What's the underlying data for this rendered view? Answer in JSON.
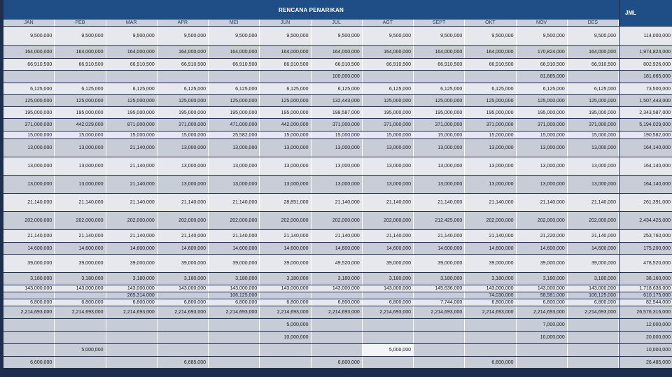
{
  "header": {
    "title": "RENCANA PENARIKAN",
    "total_label": "JML"
  },
  "months": [
    "JAN",
    "PEB",
    "MAR",
    "APR",
    "MEI",
    "JUN",
    "JUL",
    "AGT",
    "SEPT",
    "OKT",
    "NOV",
    "DES"
  ],
  "rows": [
    {
      "h": 28,
      "s": "l",
      "v": [
        "9,500,000",
        "9,500,000",
        "9,500,000",
        "9,500,000",
        "9,500,000",
        "9,500,000",
        "9,500,000",
        "9,500,000",
        "9,500,000",
        "9,500,000",
        "9,500,000",
        "9,500,000"
      ],
      "t": "114,000,000"
    },
    {
      "h": 18,
      "s": "d",
      "v": [
        "164,000,000",
        "164,000,000",
        "164,000,000",
        "164,000,000",
        "164,000,000",
        "164,000,000",
        "164,000,000",
        "164,000,000",
        "164,000,000",
        "164,000,000",
        "170,824,000",
        "164,000,000"
      ],
      "t": "1,974,824,000"
    },
    {
      "h": 17,
      "s": "l",
      "v": [
        "66,910,500",
        "66,910,500",
        "66,910,500",
        "66,910,500",
        "66,910,500",
        "66,910,500",
        "66,910,500",
        "66,910,500",
        "66,910,500",
        "66,910,500",
        "66,910,500",
        "66,910,500"
      ],
      "t": "802,926,000"
    },
    {
      "h": 18,
      "s": "d",
      "v": [
        "",
        "",
        "",
        "",
        "",
        "",
        "100,000,000",
        "",
        "",
        "",
        "81,665,000",
        ""
      ],
      "t": "181,665,000"
    },
    {
      "h": 17,
      "s": "l",
      "v": [
        "6,125,000",
        "6,125,000",
        "6,125,000",
        "6,125,000",
        "6,125,000",
        "6,125,000",
        "6,125,000",
        "6,125,000",
        "6,125,000",
        "6,125,000",
        "6,125,000",
        "6,125,000"
      ],
      "t": "73,500,000"
    },
    {
      "h": 17,
      "s": "d",
      "v": [
        "125,000,000",
        "125,000,000",
        "125,000,000",
        "125,000,000",
        "125,000,000",
        "125,000,000",
        "132,443,000",
        "125,000,000",
        "125,000,000",
        "125,000,000",
        "125,000,000",
        "125,000,000"
      ],
      "t": "1,507,443,000"
    },
    {
      "h": 17,
      "s": "l",
      "v": [
        "195,000,000",
        "195,000,000",
        "195,000,000",
        "195,000,000",
        "195,000,000",
        "195,000,000",
        "198,587,000",
        "195,000,000",
        "195,000,000",
        "195,000,000",
        "195,000,000",
        "195,000,000"
      ],
      "t": "2,343,587,000"
    },
    {
      "h": 18,
      "s": "d",
      "v": [
        "371,000,000",
        "442,029,000",
        "871,000,000",
        "371,000,000",
        "471,000,000",
        "442,000,000",
        "371,000,000",
        "371,000,000",
        "371,000,000",
        "371,000,000",
        "371,000,000",
        "371,000,000"
      ],
      "t": "5,194,029,000"
    },
    {
      "h": 11,
      "s": "l",
      "v": [
        "15,000,000",
        "15,000,000",
        "15,000,000",
        "15,000,000",
        "25,582,000",
        "15,000,000",
        "15,000,000",
        "15,000,000",
        "15,000,000",
        "15,000,000",
        "15,000,000",
        "15,000,000"
      ],
      "t": "190,582,000"
    },
    {
      "h": 26,
      "s": "d",
      "v": [
        "13,000,000",
        "13,000,000",
        "21,140,000",
        "13,000,000",
        "13,000,000",
        "13,000,000",
        "13,000,000",
        "13,000,000",
        "13,000,000",
        "13,000,000",
        "13,000,000",
        "13,000,000"
      ],
      "t": "164,140,000"
    },
    {
      "h": 26,
      "s": "l",
      "v": [
        "13,000,000",
        "13,000,000",
        "21,140,000",
        "13,000,000",
        "13,000,000",
        "13,000,000",
        "13,000,000",
        "13,000,000",
        "13,000,000",
        "13,000,000",
        "13,000,000",
        "13,000,000"
      ],
      "t": "164,140,000"
    },
    {
      "h": 26,
      "s": "d",
      "v": [
        "13,000,000",
        "13,000,000",
        "21,140,000",
        "13,000,000",
        "13,000,000",
        "13,000,000",
        "13,000,000",
        "13,000,000",
        "13,000,000",
        "13,000,000",
        "13,000,000",
        "13,000,000"
      ],
      "t": "164,140,000"
    },
    {
      "h": 26,
      "s": "l",
      "v": [
        "21,140,000",
        "21,140,000",
        "21,140,000",
        "21,140,000",
        "21,140,000",
        "28,851,000",
        "21,140,000",
        "21,140,000",
        "21,140,000",
        "21,140,000",
        "21,140,000",
        "21,140,000"
      ],
      "t": "261,391,000"
    },
    {
      "h": 26,
      "s": "d",
      "v": [
        "202,000,000",
        "202,000,000",
        "202,000,000",
        "202,000,000",
        "202,000,000",
        "202,000,000",
        "202,000,000",
        "202,000,000",
        "212,425,000",
        "202,000,000",
        "202,000,000",
        "202,000,000"
      ],
      "t": "2,434,425,000"
    },
    {
      "h": 18,
      "s": "l",
      "v": [
        "21,140,000",
        "21,140,000",
        "21,140,000",
        "21,140,000",
        "21,140,000",
        "21,140,000",
        "21,140,000",
        "21,140,000",
        "21,140,000",
        "21,140,000",
        "21,220,000",
        "21,140,000"
      ],
      "t": "253,760,000"
    },
    {
      "h": 17,
      "s": "d",
      "v": [
        "14,600,000",
        "14,600,000",
        "14,600,000",
        "14,600,000",
        "14,600,000",
        "14,600,000",
        "14,600,000",
        "14,600,000",
        "14,600,000",
        "14,600,000",
        "14,600,000",
        "14,600,000"
      ],
      "t": "175,200,000"
    },
    {
      "h": 26,
      "s": "l",
      "v": [
        "39,000,000",
        "39,000,000",
        "39,000,000",
        "39,000,000",
        "39,000,000",
        "39,000,000",
        "49,520,000",
        "39,000,000",
        "39,000,000",
        "39,000,000",
        "39,000,000",
        "39,000,000"
      ],
      "t": "478,520,000"
    },
    {
      "h": 18,
      "s": "d",
      "v": [
        "3,180,000",
        "3,180,000",
        "3,180,000",
        "3,180,000",
        "3,180,000",
        "3,180,000",
        "3,180,000",
        "3,180,000",
        "3,180,000",
        "3,180,000",
        "3,180,000",
        "3,180,000"
      ],
      "t": "38,160,000"
    },
    {
      "h": 10,
      "s": "l",
      "v": [
        "143,000,000",
        "143,000,000",
        "143,000,000",
        "143,000,000",
        "143,000,000",
        "143,000,000",
        "143,000,000",
        "143,000,000",
        "145,636,000",
        "143,000,000",
        "143,000,000",
        "143,000,000"
      ],
      "t": "1,718,636,000"
    },
    {
      "h": 10,
      "s": "d",
      "v": [
        "",
        "",
        "265,314,000",
        "",
        "106,125,000",
        "",
        "",
        "",
        "",
        "74,030,000",
        "58,581,000",
        "106,125,000"
      ],
      "t": "610,175,000"
    },
    {
      "h": 10,
      "s": "l",
      "v": [
        "6,800,000",
        "6,800,000",
        "6,800,000",
        "6,800,000",
        "6,800,000",
        "6,800,000",
        "6,800,000",
        "6,800,000",
        "7,744,000",
        "6,800,000",
        "6,800,000",
        "6,800,000"
      ],
      "t": "82,544,000"
    },
    {
      "h": 18,
      "s": "d",
      "v": [
        "2,214,693,000",
        "2,214,693,000",
        "2,214,693,000",
        "2,214,693,000",
        "2,214,693,000",
        "2,214,693,000",
        "2,214,693,000",
        "2,214,693,000",
        "2,214,693,000",
        "2,214,693,000",
        "2,214,693,000",
        "2,214,693,000"
      ],
      "t": "26,576,316,000"
    },
    {
      "h": 18,
      "s": "d",
      "v": [
        "",
        "",
        "",
        "",
        "",
        "5,000,000",
        "",
        "",
        "",
        "",
        "7,000,000",
        ""
      ],
      "t": "12,000,000"
    },
    {
      "h": 18,
      "s": "d",
      "v": [
        "",
        "",
        "",
        "",
        "",
        "10,000,000",
        "",
        "",
        "",
        "",
        "10,000,000",
        ""
      ],
      "t": "20,000,000"
    },
    {
      "h": 18,
      "s": "d",
      "v": [
        "",
        "5,000,000",
        "",
        "",
        "",
        "",
        "",
        "5,000,000",
        "",
        "",
        "",
        ""
      ],
      "t": "10,000,000"
    },
    {
      "h": 17,
      "s": "d",
      "v": [
        "6,600,000",
        "",
        "",
        "6,685,000",
        "",
        "",
        "6,600,000",
        "",
        "",
        "6,600,000",
        "",
        ""
      ],
      "t": "26,485,000"
    }
  ]
}
